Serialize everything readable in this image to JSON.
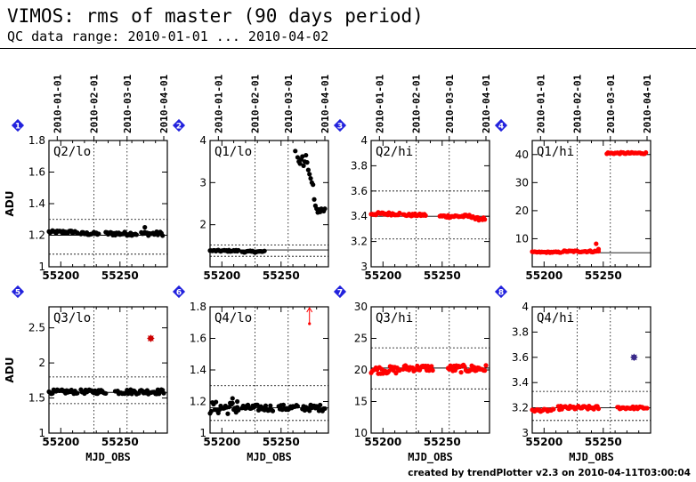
{
  "header": {
    "title": "VIMOS: rms of master (90 days period)",
    "subtitle": "QC data range: 2010-01-01 ... 2010-04-02"
  },
  "footer": "created by trendPlotter v2.3 on 2010-04-11T03:00:04",
  "date_axis": {
    "labels": [
      "2010-01-01",
      "2010-02-01",
      "2010-03-01",
      "2010-04-01"
    ],
    "mjd": [
      55197,
      55228,
      55256,
      55287
    ]
  },
  "colors": {
    "normal": "#000000",
    "highlight": "#ff0000",
    "outlier": "#cc0000",
    "special": "#3a2a8a",
    "badge": "#2222dd",
    "ref_line": "#000000"
  },
  "chart_data": [
    {
      "panel": "1",
      "label": "Q2/lo",
      "type": "scatter",
      "color": "black",
      "ylabel": "ADU",
      "xlabel": "",
      "xlim": [
        55190,
        55290
      ],
      "xticks": [
        55200,
        55250
      ],
      "ylim": [
        1.0,
        1.8
      ],
      "yticks": [
        "1",
        "1.2",
        "1.4",
        "1.6",
        "1.8"
      ],
      "ytick_values": [
        1.0,
        1.2,
        1.4,
        1.6,
        1.8
      ],
      "ref_line": 1.2,
      "limit_lines": [
        1.08,
        1.3
      ],
      "groups": [
        [
          55190,
          55214,
          1.22,
          0.01
        ],
        [
          55217,
          55232,
          1.21,
          0.01
        ],
        [
          55238,
          55264,
          1.21,
          0.012
        ],
        [
          55268,
          55286,
          1.21,
          0.013
        ]
      ],
      "points": [
        [
          55271,
          1.25
        ]
      ]
    },
    {
      "panel": "2",
      "label": "Q1/lo",
      "type": "scatter",
      "color": "black",
      "ylabel": "",
      "xlabel": "",
      "xlim": [
        55190,
        55290
      ],
      "xticks": [
        55200,
        55250
      ],
      "ylim": [
        1.0,
        4.0
      ],
      "yticks": [
        "2",
        "3",
        "4"
      ],
      "ytick_values": [
        2,
        3,
        4
      ],
      "ref_line": 1.4,
      "limit_lines": [
        1.25,
        1.52
      ],
      "groups": [
        [
          55190,
          55214,
          1.38,
          0.02
        ],
        [
          55217,
          55236,
          1.36,
          0.02
        ],
        [
          55280,
          55287,
          2.35,
          0.08
        ]
      ],
      "points": [
        [
          55262,
          3.75
        ],
        [
          55264,
          3.6
        ],
        [
          55265,
          3.5
        ],
        [
          55266,
          3.45
        ],
        [
          55267,
          3.55
        ],
        [
          55268,
          3.62
        ],
        [
          55269,
          3.4
        ],
        [
          55270,
          3.5
        ],
        [
          55271,
          3.65
        ],
        [
          55272,
          3.48
        ],
        [
          55273,
          3.3
        ],
        [
          55274,
          3.2
        ],
        [
          55275,
          3.1
        ],
        [
          55276,
          3.0
        ],
        [
          55277,
          2.95
        ],
        [
          55278,
          2.6
        ],
        [
          55279,
          2.45
        ]
      ]
    },
    {
      "panel": "3",
      "label": "Q2/hi",
      "type": "scatter",
      "color": "red",
      "ylabel": "",
      "xlabel": "",
      "xlim": [
        55190,
        55290
      ],
      "xticks": [
        55200,
        55250
      ],
      "ylim": [
        3.0,
        4.0
      ],
      "yticks": [
        "3",
        "3.2",
        "3.4",
        "3.6",
        "3.8",
        "4"
      ],
      "ytick_values": [
        3.0,
        3.2,
        3.4,
        3.6,
        3.8,
        4.0
      ],
      "ref_line": 3.4,
      "limit_lines": [
        3.22,
        3.6
      ],
      "groups": [
        [
          55190,
          55214,
          3.42,
          0.012
        ],
        [
          55217,
          55236,
          3.41,
          0.01
        ],
        [
          55248,
          55276,
          3.4,
          0.012
        ],
        [
          55278,
          55286,
          3.38,
          0.012
        ]
      ],
      "points": []
    },
    {
      "panel": "4",
      "label": "Q1/hi",
      "type": "scatter",
      "color": "red",
      "ylabel": "",
      "xlabel": "",
      "xlim": [
        55190,
        55290
      ],
      "xticks": [
        55200,
        55250
      ],
      "ylim": [
        0,
        45
      ],
      "yticks": [
        "10",
        "20",
        "30",
        "40"
      ],
      "ytick_values": [
        10,
        20,
        30,
        40
      ],
      "ref_line": 5.0,
      "limit_lines": [],
      "groups": [
        [
          55190,
          55214,
          5.2,
          0.2
        ],
        [
          55216,
          55246,
          5.5,
          0.3
        ],
        [
          55253,
          55286,
          40.5,
          0.3
        ]
      ],
      "points": [
        [
          55244,
          8.2
        ],
        [
          55246,
          6.3
        ]
      ]
    },
    {
      "panel": "5",
      "label": "Q3/lo",
      "type": "scatter",
      "color": "black",
      "ylabel": "ADU",
      "xlabel": "MJD_OBS",
      "xlim": [
        55190,
        55290
      ],
      "xticks": [
        55200,
        55250
      ],
      "ylim": [
        1.0,
        2.8
      ],
      "yticks": [
        "1",
        "1.5",
        "2",
        "2.5"
      ],
      "ytick_values": [
        1.0,
        1.5,
        2.0,
        2.5
      ],
      "ref_line": 1.58,
      "limit_lines": [
        1.42,
        1.8
      ],
      "groups": [
        [
          55190,
          55214,
          1.59,
          0.03
        ],
        [
          55217,
          55238,
          1.59,
          0.03
        ],
        [
          55246,
          55287,
          1.59,
          0.035
        ]
      ],
      "points": [],
      "markers": [
        [
          55276,
          2.35,
          "outlier"
        ]
      ]
    },
    {
      "panel": "6",
      "label": "Q4/lo",
      "type": "scatter",
      "color": "black",
      "ylabel": "",
      "xlabel": "MJD_OBS",
      "xlim": [
        55190,
        55290
      ],
      "xticks": [
        55200,
        55250
      ],
      "ylim": [
        1.0,
        1.8
      ],
      "yticks": [
        "1",
        "1.2",
        "1.4",
        "1.6",
        "1.8"
      ],
      "ytick_values": [
        1.0,
        1.2,
        1.4,
        1.6,
        1.8
      ],
      "ref_line": 1.16,
      "limit_lines": [
        1.08,
        1.3
      ],
      "groups": [
        [
          55190,
          55214,
          1.16,
          0.04
        ],
        [
          55217,
          55243,
          1.16,
          0.02
        ],
        [
          55248,
          55264,
          1.16,
          0.02
        ],
        [
          55268,
          55287,
          1.16,
          0.02
        ]
      ],
      "points": [
        [
          55209,
          1.22
        ],
        [
          55213,
          1.2
        ]
      ],
      "markers": [
        [
          55274,
          1.8,
          "arrow"
        ]
      ]
    },
    {
      "panel": "7",
      "label": "Q3/hi",
      "type": "scatter",
      "color": "red",
      "ylabel": "",
      "xlabel": "MJD_OBS",
      "xlim": [
        55190,
        55290
      ],
      "xticks": [
        55200,
        55250
      ],
      "ylim": [
        10,
        30
      ],
      "yticks": [
        "10",
        "15",
        "20",
        "25",
        "30"
      ],
      "ytick_values": [
        10,
        15,
        20,
        25,
        30
      ],
      "ref_line": 20.3,
      "limit_lines": [
        17,
        23.5
      ],
      "groups": [
        [
          55190,
          55214,
          20.0,
          0.6
        ],
        [
          55217,
          55242,
          20.3,
          0.5
        ],
        [
          55255,
          55287,
          20.2,
          0.6
        ]
      ],
      "points": []
    },
    {
      "panel": "8",
      "label": "Q4/hi",
      "type": "scatter",
      "color": "red",
      "ylabel": "",
      "xlabel": "MJD_OBS",
      "xlim": [
        55190,
        55290
      ],
      "xticks": [
        55200,
        55250
      ],
      "ylim": [
        3.0,
        4.0
      ],
      "yticks": [
        "3",
        "3.2",
        "3.4",
        "3.6",
        "3.8",
        "4"
      ],
      "ytick_values": [
        3.0,
        3.2,
        3.4,
        3.6,
        3.8,
        4.0
      ],
      "ref_line": 3.2,
      "limit_lines": [
        3.1,
        3.33
      ],
      "groups": [
        [
          55190,
          55208,
          3.18,
          0.01
        ],
        [
          55212,
          55246,
          3.2,
          0.015
        ],
        [
          55262,
          55287,
          3.2,
          0.01
        ]
      ],
      "points": [],
      "markers": [
        [
          55276,
          3.6,
          "special"
        ]
      ]
    }
  ]
}
